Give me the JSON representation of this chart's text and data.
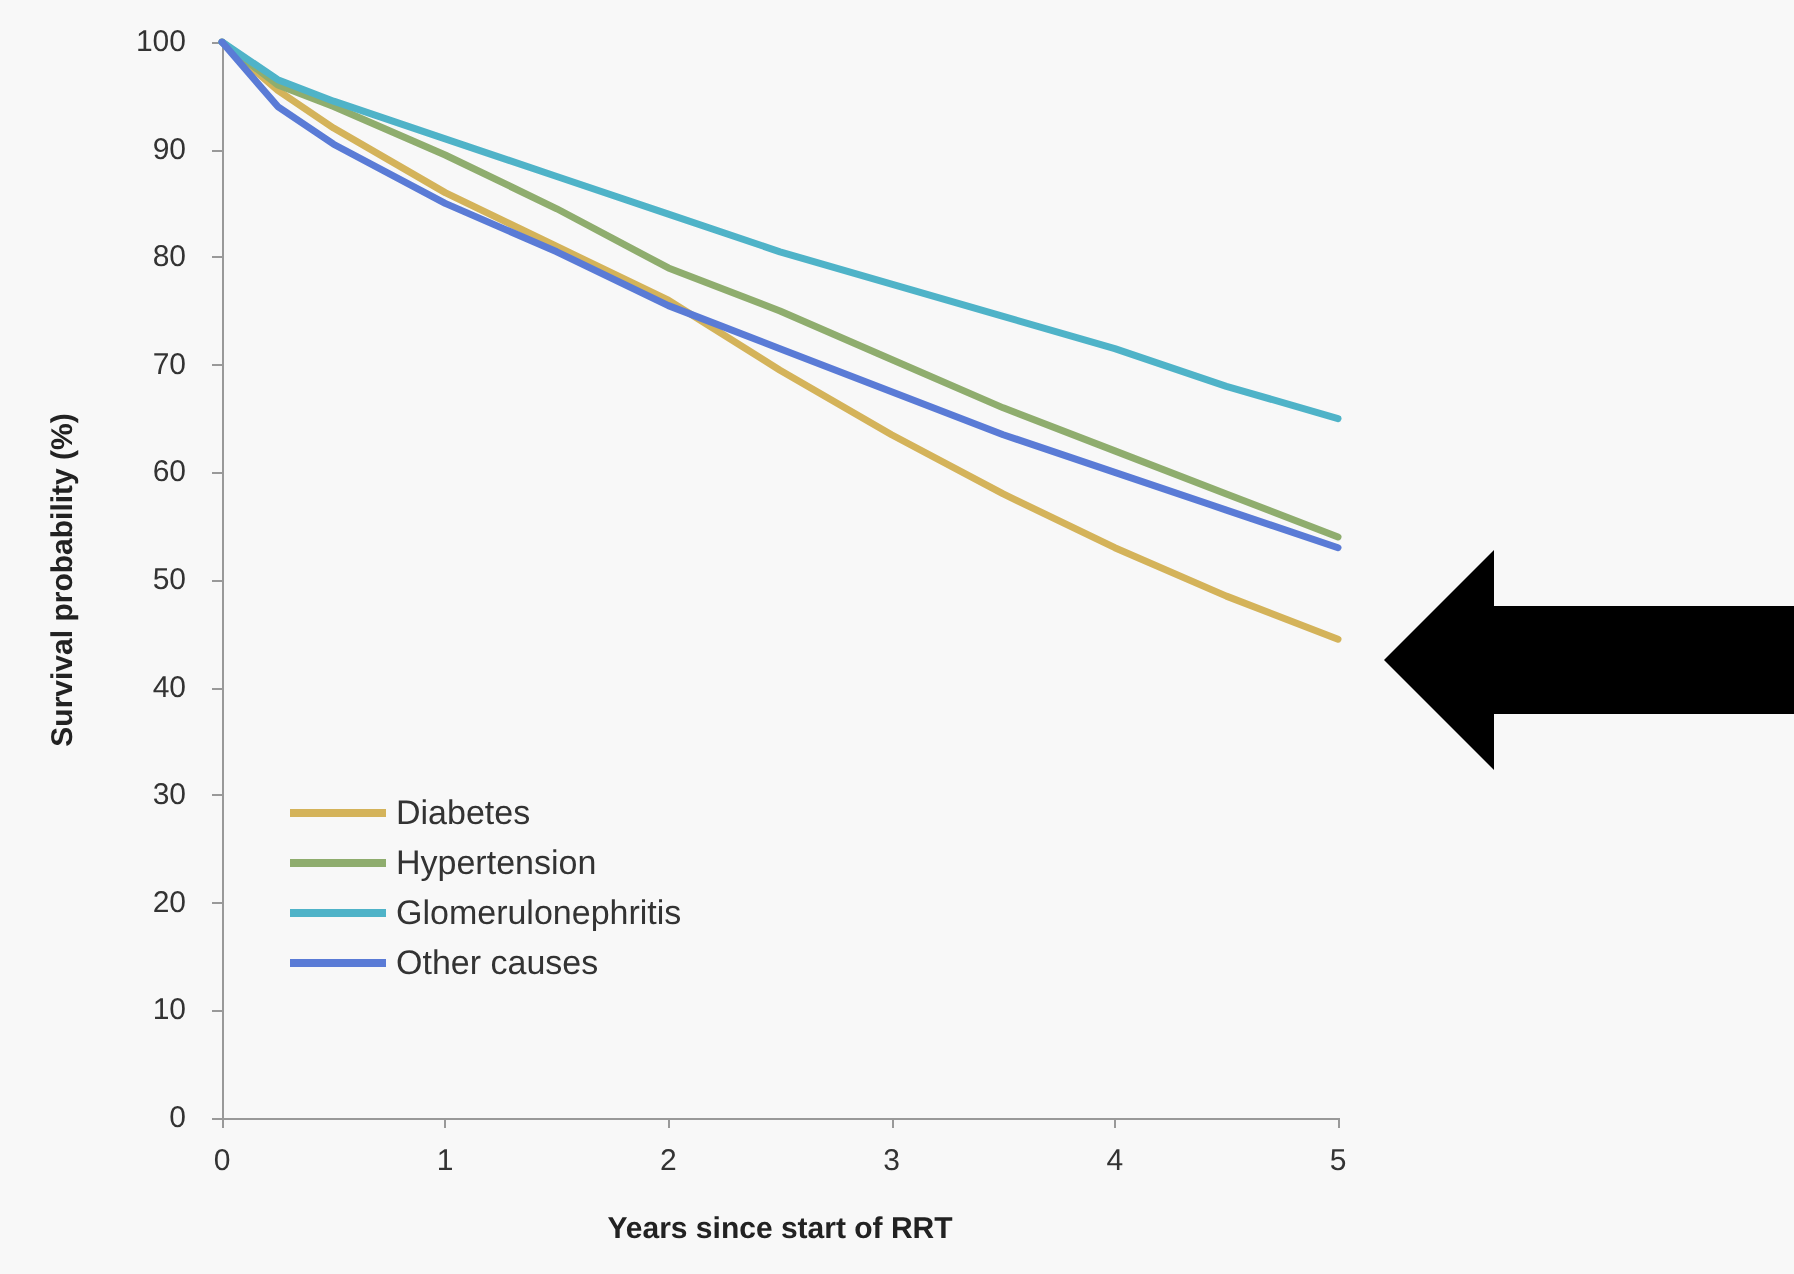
{
  "chart_data": {
    "type": "line",
    "xlabel": "Years since start of RRT",
    "ylabel": "Survival probability (%)",
    "x": [
      0,
      0.25,
      0.5,
      1,
      1.5,
      2,
      2.5,
      3,
      3.5,
      4,
      4.5,
      5
    ],
    "series": [
      {
        "name": "Diabetes",
        "color": "#d4b35a",
        "values": [
          100,
          95.5,
          92,
          86,
          81,
          76,
          69.5,
          63.5,
          58,
          53,
          48.5,
          44.5
        ]
      },
      {
        "name": "Hypertension",
        "color": "#8fad6e",
        "values": [
          100,
          96,
          94,
          89.5,
          84.5,
          79,
          75,
          70.5,
          66,
          62,
          58,
          54
        ]
      },
      {
        "name": "Glomerulonephritis",
        "color": "#4fb3c8",
        "values": [
          100,
          96.5,
          94.5,
          91,
          87.5,
          84,
          80.5,
          77.5,
          74.5,
          71.5,
          68,
          65
        ]
      },
      {
        "name": "Other causes",
        "color": "#5a7bd6",
        "values": [
          100,
          94,
          90.5,
          85,
          80.5,
          75.5,
          71.5,
          67.5,
          63.5,
          60,
          56.5,
          53
        ]
      }
    ],
    "xlim": [
      0,
      5
    ],
    "xticks": [
      0,
      1,
      2,
      3,
      4,
      5
    ],
    "ylim": [
      0,
      100
    ],
    "yticks": [
      0,
      10,
      20,
      30,
      40,
      50,
      60,
      70,
      80,
      90,
      100
    ],
    "grid": false,
    "legend": "bottom left",
    "marker": "none",
    "line_style": "solid"
  }
}
